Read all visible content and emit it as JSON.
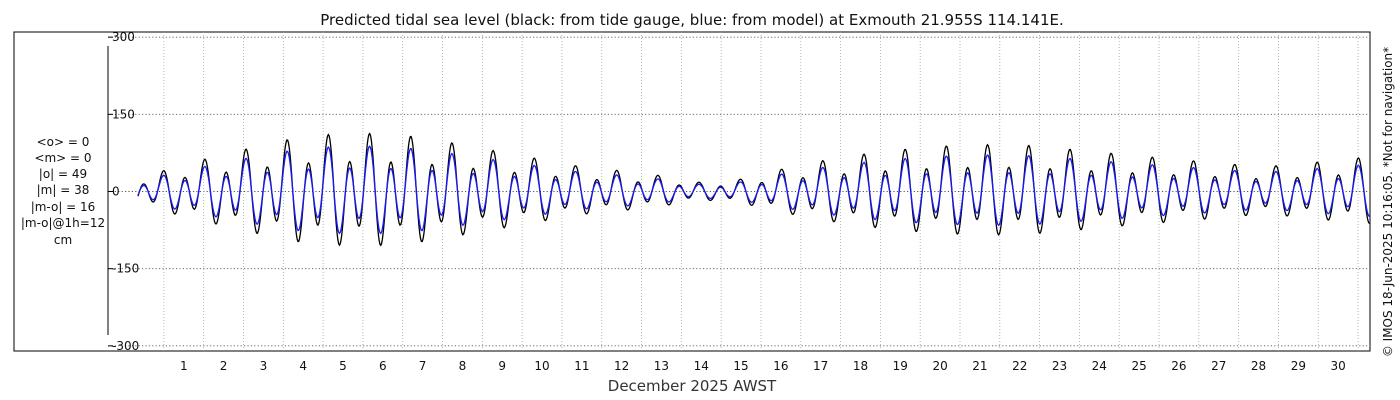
{
  "chart_data": {
    "type": "line",
    "title": "Predicted tidal sea level (black: from tide gauge, blue: from model) at Exmouth 21.955S 114.141E.",
    "xlabel": "December 2025 AWST",
    "ylabel": "",
    "xlim": [
      0.35,
      31.3
    ],
    "ylim": [
      -310,
      310
    ],
    "x_ticks": [
      "1",
      "2",
      "3",
      "4",
      "5",
      "6",
      "7",
      "8",
      "9",
      "10",
      "11",
      "12",
      "13",
      "14",
      "15",
      "16",
      "17",
      "18",
      "19",
      "20",
      "21",
      "22",
      "23",
      "24",
      "25",
      "26",
      "27",
      "28",
      "29",
      "30"
    ],
    "y_ticks": [
      {
        "value": 300,
        "label": "300"
      },
      {
        "value": 150,
        "label": "150"
      },
      {
        "value": 0,
        "label": "0"
      },
      {
        "value": -150,
        "label": "-150"
      },
      {
        "value": -300,
        "label": "-300"
      }
    ],
    "grid": true,
    "series": [
      {
        "name": "from tide gauge",
        "color": "#000000",
        "period_days": 0.5175,
        "phase_day": 1.0,
        "amplitude_by_day": [
          {
            "day": 0.5,
            "amp": 30
          },
          {
            "day": 1.5,
            "amp": 55
          },
          {
            "day": 2.5,
            "amp": 75
          },
          {
            "day": 3.5,
            "amp": 95
          },
          {
            "day": 4.5,
            "amp": 112
          },
          {
            "day": 5.5,
            "amp": 118
          },
          {
            "day": 6.5,
            "amp": 118
          },
          {
            "day": 7.5,
            "amp": 110
          },
          {
            "day": 8.5,
            "amp": 95
          },
          {
            "day": 9.5,
            "amp": 80
          },
          {
            "day": 10.5,
            "amp": 65
          },
          {
            "day": 11.5,
            "amp": 50
          },
          {
            "day": 12.5,
            "amp": 42
          },
          {
            "day": 13.5,
            "amp": 32
          },
          {
            "day": 14.5,
            "amp": 18
          },
          {
            "day": 15.5,
            "amp": 25
          },
          {
            "day": 16.5,
            "amp": 45
          },
          {
            "day": 17.5,
            "amp": 62
          },
          {
            "day": 18.5,
            "amp": 75
          },
          {
            "day": 19.5,
            "amp": 85
          },
          {
            "day": 20.5,
            "amp": 92
          },
          {
            "day": 21.5,
            "amp": 95
          },
          {
            "day": 22.5,
            "amp": 95
          },
          {
            "day": 23.5,
            "amp": 88
          },
          {
            "day": 24.5,
            "amp": 80
          },
          {
            "day": 25.5,
            "amp": 72
          },
          {
            "day": 26.5,
            "amp": 65
          },
          {
            "day": 27.5,
            "amp": 58
          },
          {
            "day": 28.5,
            "amp": 50
          },
          {
            "day": 29.5,
            "amp": 55
          },
          {
            "day": 30.5,
            "amp": 65
          },
          {
            "day": 31.3,
            "amp": 70
          }
        ]
      },
      {
        "name": "from model",
        "color": "#1a1aff",
        "period_days": 0.5175,
        "phase_day": 1.0,
        "scale_of_gauge": 0.78
      }
    ]
  },
  "stats": {
    "lines": [
      "<o> = 0",
      "<m> = 0",
      "|o| = 49",
      "|m| = 38",
      "|m-o| = 16",
      "|m-o|@1h=12",
      "cm"
    ]
  },
  "credit": "© IMOS 18-Jun-2025 10:16:05. *Not for navigation*"
}
